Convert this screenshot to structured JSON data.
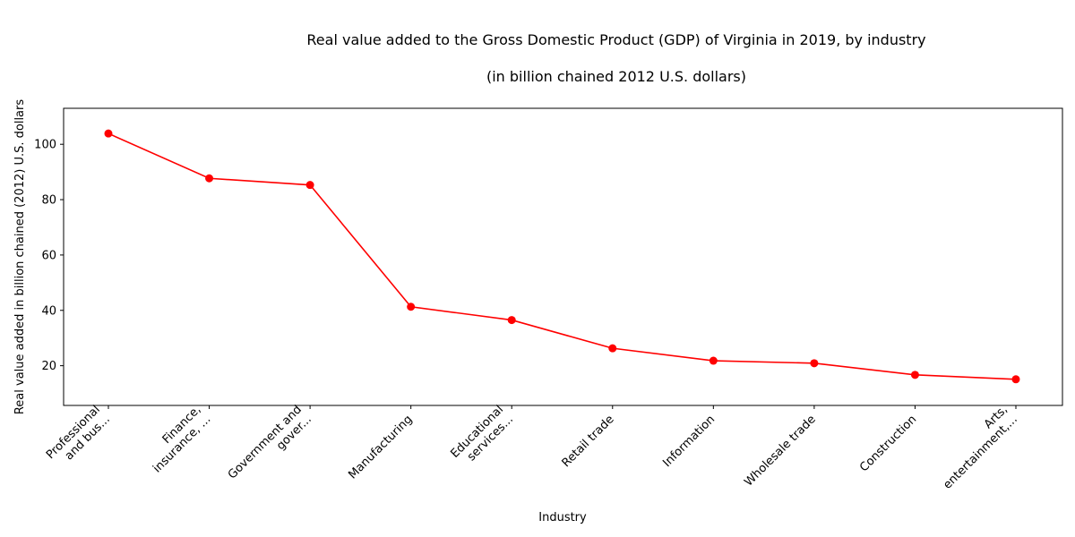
{
  "chart_data": {
    "type": "line",
    "title": "Real value added to the Gross Domestic Product (GDP) of Virginia in 2019, by industry",
    "subtitle": "(in billion chained 2012 U.S. dollars)",
    "xlabel": "Industry",
    "ylabel": "Real value added in billion chained (2012) U.S. dollars",
    "categories": [
      [
        "Professional",
        "and bus..."
      ],
      [
        "Finance,",
        "insurance, ..."
      ],
      [
        "Government and",
        "gover..."
      ],
      [
        "Manufacturing"
      ],
      [
        "Educational",
        "services..."
      ],
      [
        "Retail trade"
      ],
      [
        "Information"
      ],
      [
        "Wholesale trade"
      ],
      [
        "Construction"
      ],
      [
        "Arts,",
        "entertainment,..."
      ]
    ],
    "series": [
      {
        "color": "#ff0000",
        "marker": "circle",
        "values": [
          103.9,
          87.7,
          85.3,
          41.3,
          36.5,
          26.3,
          21.8,
          20.9,
          16.7,
          15.1
        ]
      }
    ],
    "ylim": [
      5.65,
      113.0
    ],
    "yticks": [
      20,
      40,
      60,
      80,
      100
    ],
    "grid": false,
    "legend": false
  }
}
